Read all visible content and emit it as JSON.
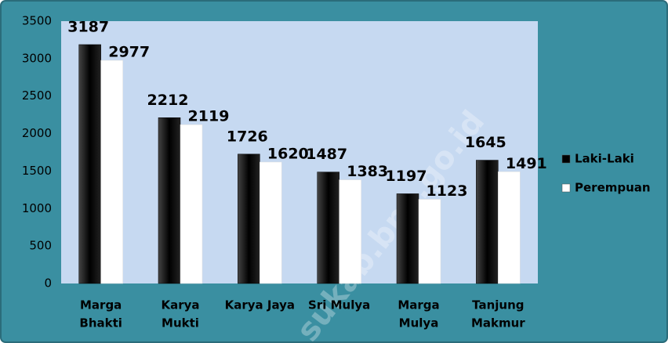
{
  "watermark": "sukab.bps.go.id",
  "chart_data": {
    "type": "bar",
    "categories": [
      [
        "Marga",
        "Bhakti"
      ],
      [
        "Karya",
        "Mukti"
      ],
      [
        "Karya Jaya"
      ],
      [
        "Sri Mulya"
      ],
      [
        "Marga",
        "Mulya"
      ],
      [
        "Tanjung",
        "Makmur"
      ]
    ],
    "series": [
      {
        "name": "Laki-Laki",
        "color": "#000000",
        "values": [
          3187,
          2212,
          1726,
          1487,
          1197,
          1645
        ]
      },
      {
        "name": "Perempuan",
        "color": "#ffffff",
        "values": [
          2977,
          2119,
          1620,
          1383,
          1123,
          1491
        ]
      }
    ],
    "ylim": [
      0,
      3500
    ],
    "yticks": [
      0,
      500,
      1000,
      1500,
      2000,
      2500,
      3000,
      3500
    ],
    "legend": "right"
  }
}
